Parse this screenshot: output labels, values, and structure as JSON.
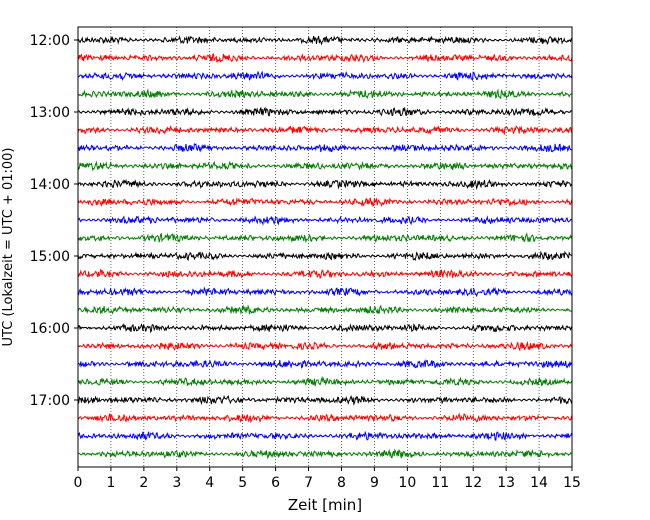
{
  "chart_data": {
    "type": "line",
    "title": "",
    "xlabel": "Zeit  [min]",
    "ylabel": "UTC (Lokalzeit = UTC + 01:00)",
    "xlim": [
      0,
      15
    ],
    "x_ticks": [
      "0",
      "1",
      "2",
      "3",
      "4",
      "5",
      "6",
      "7",
      "8",
      "9",
      "10",
      "11",
      "12",
      "13",
      "14",
      "15"
    ],
    "y_ticks": [
      "12:00",
      "13:00",
      "14:00",
      "15:00",
      "16:00",
      "17:00"
    ],
    "grid": "vertical dotted at each minute",
    "legend": "none",
    "trace_interval_min": 15,
    "first_trace": "12:00",
    "trace_count": 24,
    "trace_colors": [
      "#000000",
      "#ff0000",
      "#0000ff",
      "#008000"
    ],
    "trace_start_times": [
      "12:00",
      "12:15",
      "12:30",
      "12:45",
      "13:00",
      "13:15",
      "13:30",
      "13:45",
      "14:00",
      "14:15",
      "14:30",
      "14:45",
      "15:00",
      "15:15",
      "15:30",
      "15:45",
      "16:00",
      "16:15",
      "16:30",
      "16:45",
      "17:00",
      "17:15",
      "17:30",
      "17:45"
    ]
  }
}
